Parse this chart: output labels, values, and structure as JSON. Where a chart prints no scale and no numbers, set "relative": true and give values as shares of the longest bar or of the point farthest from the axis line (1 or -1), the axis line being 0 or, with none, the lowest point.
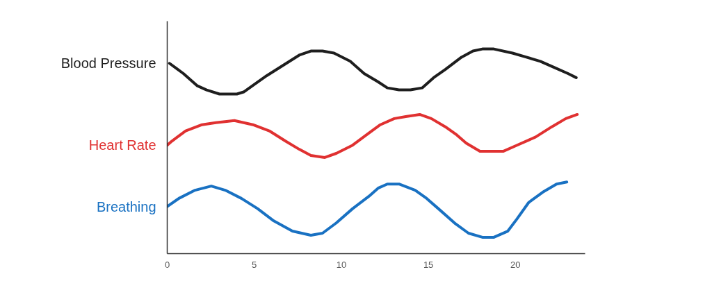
{
  "chart_data": {
    "type": "line",
    "relative": true,
    "xlim": [
      0,
      24
    ],
    "xticks": [
      0,
      5,
      10,
      15,
      20
    ],
    "grid": false,
    "line_style": "solid",
    "series": [
      {
        "name": "Blood Pressure",
        "color": "#1e1e1e",
        "x": [
          0.13,
          0.93,
          1.73,
          2.26,
          3.0,
          4.0,
          4.39,
          5.06,
          5.72,
          6.65,
          7.58,
          8.25,
          8.92,
          9.58,
          10.51,
          11.31,
          12.1,
          12.64,
          13.31,
          13.97,
          14.64,
          15.3,
          15.97,
          16.9,
          17.56,
          18.1,
          18.76,
          19.83,
          20.63,
          21.43,
          22.22,
          23.02,
          23.49
        ],
        "values": [
          0.93,
          0.88,
          0.82,
          0.8,
          0.78,
          0.78,
          0.79,
          0.83,
          0.87,
          0.92,
          0.97,
          0.99,
          0.99,
          0.98,
          0.94,
          0.88,
          0.84,
          0.81,
          0.8,
          0.8,
          0.81,
          0.86,
          0.9,
          0.96,
          0.99,
          1.0,
          1.0,
          0.98,
          0.96,
          0.94,
          0.91,
          0.88,
          0.86
        ]
      },
      {
        "name": "Heart Rate",
        "color": "#e03131",
        "x": [
          0,
          0.27,
          1.06,
          2.0,
          2.79,
          3.86,
          4.92,
          5.86,
          6.79,
          7.58,
          8.25,
          9.05,
          9.71,
          10.65,
          11.44,
          12.24,
          13.04,
          13.7,
          14.5,
          15.17,
          15.97,
          16.63,
          17.17,
          17.96,
          18.63,
          19.29,
          20.09,
          21.16,
          22.09,
          22.89,
          23.55
        ],
        "values": [
          0.53,
          0.55,
          0.6,
          0.63,
          0.64,
          0.65,
          0.63,
          0.6,
          0.55,
          0.51,
          0.48,
          0.47,
          0.49,
          0.53,
          0.58,
          0.63,
          0.66,
          0.67,
          0.68,
          0.66,
          0.62,
          0.58,
          0.54,
          0.5,
          0.5,
          0.5,
          0.53,
          0.57,
          0.62,
          0.66,
          0.68
        ]
      },
      {
        "name": "Breathing",
        "color": "#1971c2",
        "x": [
          0,
          0.67,
          1.6,
          2.53,
          3.33,
          4.26,
          5.19,
          6.12,
          7.19,
          8.25,
          8.92,
          9.71,
          10.65,
          11.58,
          12.11,
          12.64,
          13.31,
          14.24,
          14.9,
          15.57,
          16.5,
          17.3,
          18.1,
          18.76,
          19.56,
          20.09,
          20.76,
          21.56,
          22.36,
          22.95
        ],
        "values": [
          0.23,
          0.27,
          0.31,
          0.33,
          0.31,
          0.27,
          0.22,
          0.16,
          0.11,
          0.09,
          0.1,
          0.15,
          0.22,
          0.28,
          0.32,
          0.34,
          0.34,
          0.31,
          0.27,
          0.22,
          0.15,
          0.1,
          0.08,
          0.08,
          0.11,
          0.17,
          0.25,
          0.3,
          0.34,
          0.35
        ]
      }
    ]
  }
}
